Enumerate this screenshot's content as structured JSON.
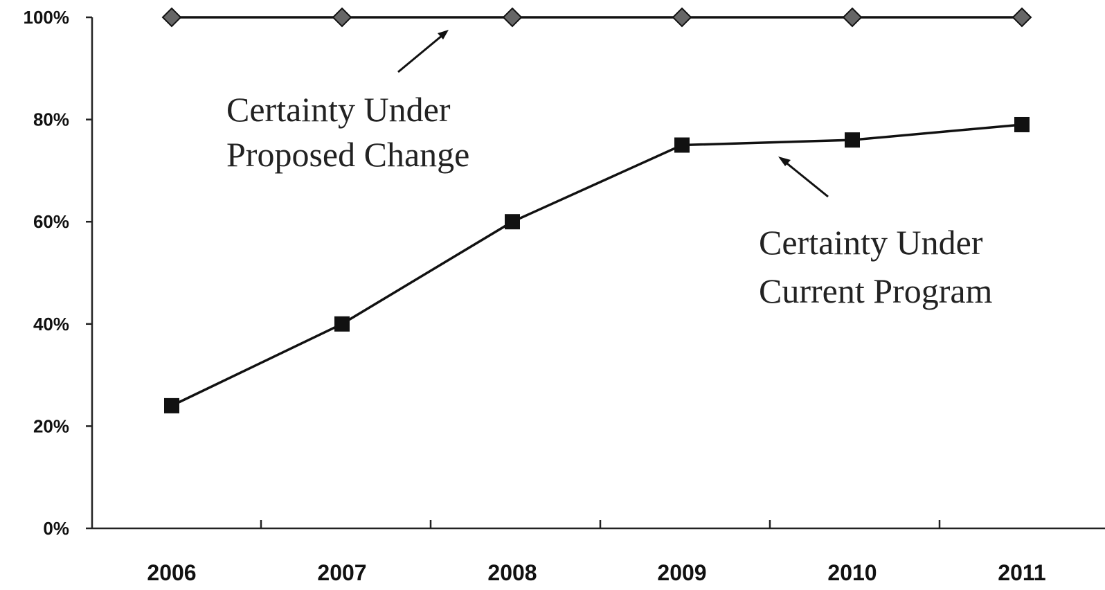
{
  "chart_data": {
    "type": "line",
    "title": "",
    "xlabel": "",
    "ylabel": "",
    "categories": [
      "2006",
      "2007",
      "2008",
      "2009",
      "2010",
      "2011"
    ],
    "ylim": [
      0,
      100
    ],
    "yticks": [
      0,
      20,
      40,
      60,
      80,
      100
    ],
    "ytick_labels": [
      "0%",
      "20%",
      "40%",
      "60%",
      "80%",
      "100%"
    ],
    "grid": false,
    "legend": "none",
    "series": [
      {
        "label_lines": [
          "Certainty Under",
          "Proposed Change"
        ],
        "values": [
          100,
          100,
          100,
          100,
          100,
          100
        ],
        "marker": "diamond",
        "color": "#666666"
      },
      {
        "label_lines": [
          "Certainty Under",
          "Current Program"
        ],
        "values": [
          24,
          40,
          60,
          75,
          76,
          79
        ],
        "marker": "square",
        "color": "#111111"
      }
    ]
  }
}
